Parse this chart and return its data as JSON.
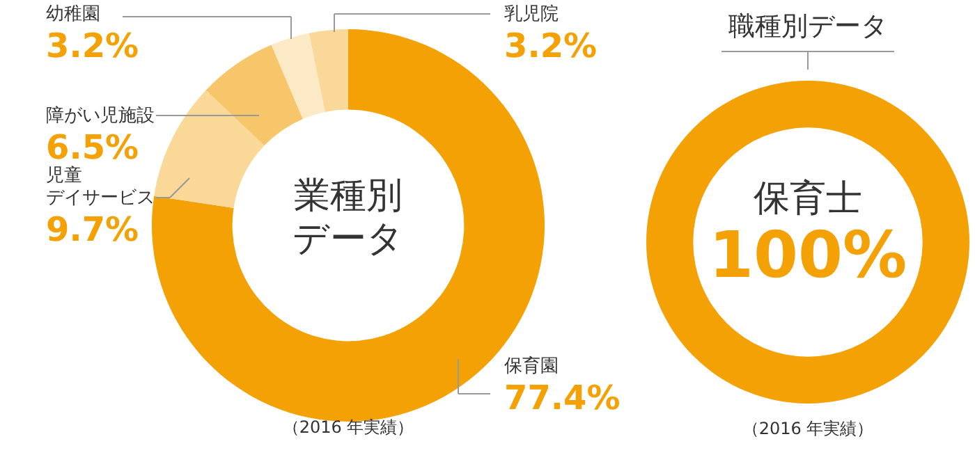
{
  "chart_data": [
    {
      "type": "donut",
      "title": "業種別データ",
      "categories": [
        "保育園",
        "児童デイサービス",
        "障がい児施設",
        "幼稚園",
        "乳児院"
      ],
      "values": [
        77.4,
        9.7,
        6.5,
        3.2,
        3.2
      ],
      "colors": [
        "#f3a104",
        "#fad898",
        "#f7c66a",
        "#fce9c6",
        "#f9d89a"
      ],
      "value_labels": [
        "77.4%",
        "9.7%",
        "6.5%",
        "3.2%",
        "3.2%"
      ],
      "annotations": [
        "（2016 年実績）"
      ]
    },
    {
      "type": "donut",
      "title": "職種別データ",
      "categories": [
        "保育士"
      ],
      "values": [
        100
      ],
      "colors": [
        "#f3a104"
      ],
      "value_labels": [
        "100%"
      ],
      "annotations": [
        "（2016 年実績）"
      ]
    }
  ]
}
